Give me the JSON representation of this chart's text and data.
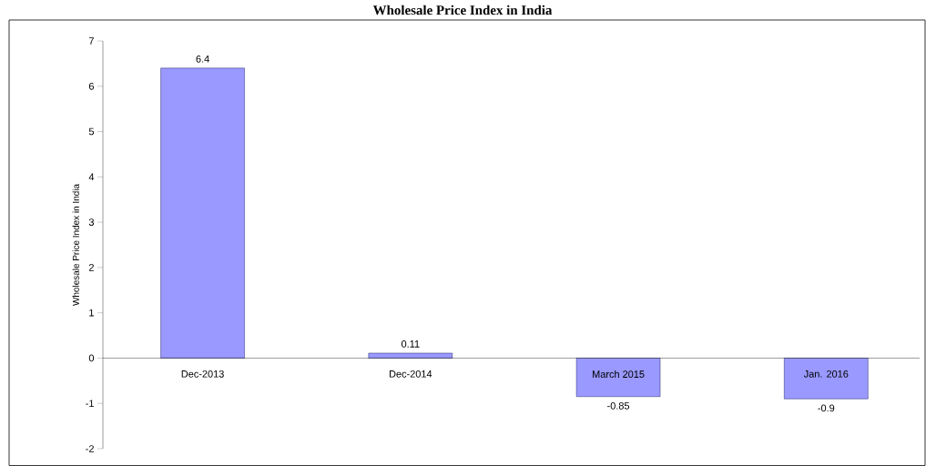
{
  "chart_data": {
    "type": "bar",
    "title": "Wholesale Price Index in India",
    "ylabel": "Wholesale Price Index in India",
    "categories": [
      "Dec-2013",
      "Dec-2014",
      "March 2015",
      "Jan. 2016"
    ],
    "values": [
      6.4,
      0.11,
      -0.85,
      -0.9
    ],
    "value_labels": [
      "6.4",
      "0.11",
      "-0.85",
      "-0.9"
    ],
    "color": "#9999ff",
    "ylim": [
      -2,
      7
    ],
    "yticks": [
      -2,
      -1,
      0,
      1,
      2,
      3,
      4,
      5,
      6,
      7
    ],
    "grid": false
  }
}
